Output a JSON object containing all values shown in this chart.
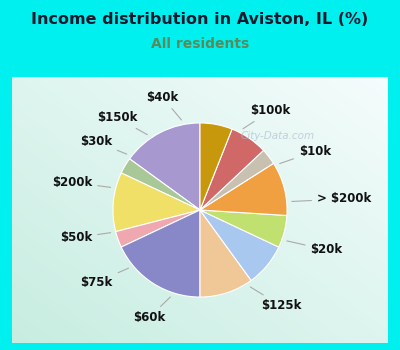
{
  "title": "Income distribution in Aviston, IL (%)",
  "subtitle": "All residents",
  "title_color": "#1a1a2e",
  "subtitle_color": "#5a8a5a",
  "background_outer": "#00f0f0",
  "background_inner_topleft": "#c8ede0",
  "background_inner_bottomright": "#e8f8f8",
  "watermark": "City-Data.com",
  "labels": [
    "$100k",
    "$10k",
    "> $200k",
    "$20k",
    "$125k",
    "$60k",
    "$75k",
    "$50k",
    "$200k",
    "$30k",
    "$150k",
    "$40k"
  ],
  "values": [
    15,
    3,
    11,
    3,
    18,
    10,
    8,
    6,
    10,
    3,
    7,
    6
  ],
  "colors": [
    "#a898d0",
    "#a8c898",
    "#f0e068",
    "#f0a8b0",
    "#8888c8",
    "#f0c898",
    "#a8c8f0",
    "#c0e070",
    "#f0a040",
    "#c8c0b0",
    "#d06868",
    "#c8980c"
  ],
  "label_fontsize": 8.5,
  "startangle": 90,
  "label_color": "#111111"
}
